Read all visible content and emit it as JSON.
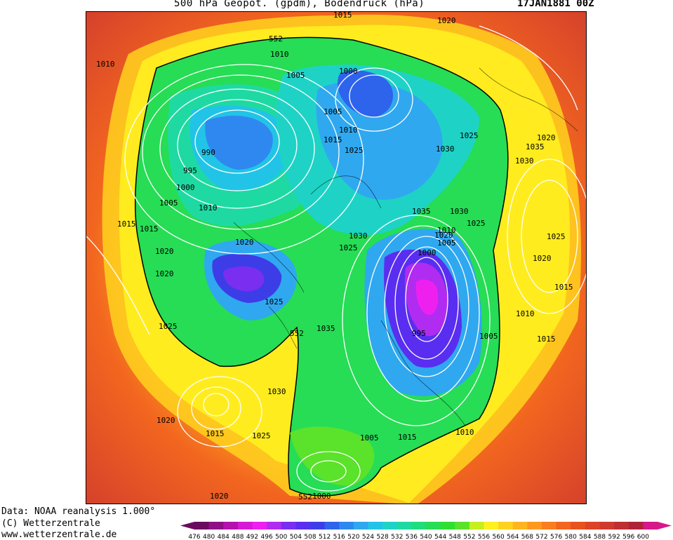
{
  "header": {
    "title": "500 hPa Geopot. (gpdm), Bodendruck (hPa)",
    "date": "17JAN1881 00Z"
  },
  "credits": {
    "line1": "Data: NOAA reanalysis 1.000°",
    "line2": "(C) Wetterzentrale",
    "line3": "www.wetterzentrale.de"
  },
  "legend": {
    "levels": [
      "476",
      "480",
      "484",
      "488",
      "492",
      "496",
      "500",
      "504",
      "508",
      "512",
      "516",
      "520",
      "524",
      "528",
      "532",
      "536",
      "540",
      "544",
      "548",
      "552",
      "556",
      "560",
      "564",
      "568",
      "572",
      "576",
      "580",
      "584",
      "588",
      "592",
      "596",
      "600"
    ],
    "colors": [
      "#6a0b5e",
      "#8e0f86",
      "#b312ad",
      "#d619d4",
      "#ee20f0",
      "#b02cf0",
      "#7a2ef0",
      "#5a2ef0",
      "#3d3de8",
      "#2e63ec",
      "#2f88f0",
      "#2fa8f0",
      "#21c4e6",
      "#1ed3c5",
      "#1edaa2",
      "#1fdd7c",
      "#26dd55",
      "#2fe033",
      "#5be22a",
      "#c5ef1f",
      "#fff01f",
      "#ffd21f",
      "#ffb51f",
      "#ff981f",
      "#fa7d1f",
      "#f2661f",
      "#e8521f",
      "#dc4427",
      "#cf3a2e",
      "#bd2f33",
      "#ad2337",
      "#d6188a"
    ]
  },
  "map": {
    "contour_552_labels": [
      "552",
      "552",
      "552"
    ],
    "pressure_labels": [
      "1015",
      "1020",
      "1010",
      "1010",
      "1005",
      "1000",
      "1005",
      "1010",
      "1015",
      "1025",
      "1025",
      "1030",
      "1020",
      "1035",
      "1030",
      "990",
      "995",
      "1000",
      "1005",
      "1010",
      "1015",
      "1015",
      "1020",
      "1020",
      "1020",
      "1025",
      "1025",
      "1030",
      "1035",
      "1030",
      "1025",
      "1025",
      "1020",
      "1015",
      "1010",
      "1000",
      "1005",
      "995",
      "1015",
      "1010",
      "1005",
      "1015",
      "1010",
      "1005",
      "1025",
      "1035",
      "1030",
      "1020",
      "1015",
      "1025",
      "1020",
      "1000",
      "1020"
    ]
  }
}
